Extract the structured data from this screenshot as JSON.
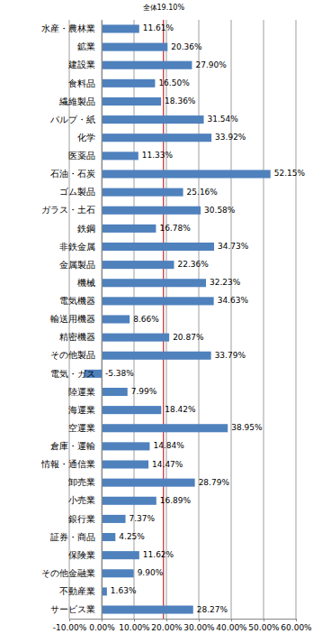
{
  "chart_data": {
    "type": "bar",
    "orientation": "horizontal",
    "categories": [
      "水産・農林業",
      "鉱業",
      "建設業",
      "食料品",
      "繊維製品",
      "パルプ・紙",
      "化学",
      "医薬品",
      "石油・石炭",
      "ゴム製品",
      "ガラス・土石",
      "鉄鋼",
      "非鉄金属",
      "金属製品",
      "機械",
      "電気機器",
      "輸送用機器",
      "精密機器",
      "その他製品",
      "電気・ガス",
      "陸運業",
      "海運業",
      "空運業",
      "倉庫・運輸",
      "情報・通信業",
      "卸売業",
      "小売業",
      "銀行業",
      "証券・商品",
      "保険業",
      "その他金融業",
      "不動産業",
      "サービス業"
    ],
    "values": [
      11.61,
      20.36,
      27.9,
      16.5,
      18.36,
      31.54,
      33.92,
      11.33,
      52.15,
      25.16,
      30.58,
      16.78,
      34.73,
      22.36,
      32.23,
      34.63,
      8.66,
      20.87,
      33.79,
      -5.38,
      7.99,
      18.42,
      38.95,
      14.84,
      14.47,
      28.79,
      16.89,
      7.37,
      4.25,
      11.62,
      9.9,
      1.63,
      28.27
    ],
    "value_labels": [
      "11.61%",
      "20.36%",
      "27.90%",
      "16.50%",
      "18.36%",
      "31.54%",
      "33.92%",
      "11.33%",
      "52.15%",
      "25.16%",
      "30.58%",
      "16.78%",
      "34.73%",
      "22.36%",
      "32.23%",
      "34.63%",
      "8.66%",
      "20.87%",
      "33.79%",
      "-5.38%",
      "7.99%",
      "18.42%",
      "38.95%",
      "14.84%",
      "14.47%",
      "28.79%",
      "16.89%",
      "7.37%",
      "4.25%",
      "11.62%",
      "9.90%",
      "1.63%",
      "28.27%"
    ],
    "color": "#4f81bd",
    "data_labels": true,
    "grid": true,
    "xlim": [
      -10,
      60
    ],
    "xticks": [
      {
        "value": -10,
        "label": "-10.00%"
      },
      {
        "value": 0,
        "label": "0.00%"
      },
      {
        "value": 10,
        "label": "10.00%"
      },
      {
        "value": 20,
        "label": "20.00%"
      },
      {
        "value": 30,
        "label": "30.00%"
      },
      {
        "value": 40,
        "label": "40.00%"
      },
      {
        "value": 50,
        "label": "50.00%"
      },
      {
        "value": 60,
        "label": "60.00%"
      }
    ],
    "annotations": [
      {
        "text": "全体19.10%",
        "x": 19.1,
        "color": "#c00000"
      }
    ]
  }
}
